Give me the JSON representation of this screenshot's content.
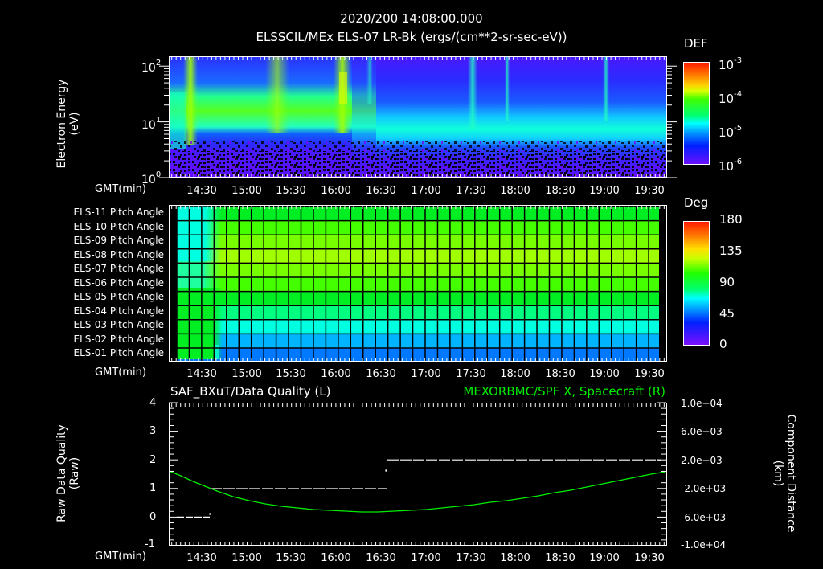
{
  "header": {
    "timestamp": "2020/200 14:08:00.000",
    "subtitle": "ELSSCIL/MEx ELS-07 LR-Bk  (ergs/(cm**2-sr-sec-eV))"
  },
  "x_axis": {
    "label": "GMT(min)",
    "ticks": [
      "14:30",
      "15:00",
      "15:30",
      "16:00",
      "16:30",
      "17:00",
      "17:30",
      "18:00",
      "18:30",
      "19:00",
      "19:30"
    ],
    "start": "14:08",
    "end": "19:45"
  },
  "panel1": {
    "ylabel_line1": "Electron Energy",
    "ylabel_line2": "(eV)",
    "yticks": [
      {
        "base": "10",
        "exp": "2"
      },
      {
        "base": "10",
        "exp": "1"
      },
      {
        "base": "10",
        "exp": "0"
      }
    ],
    "colorbar": {
      "title": "DEF",
      "labels": [
        {
          "base": "10",
          "exp": "-3"
        },
        {
          "base": "10",
          "exp": "-4"
        },
        {
          "base": "10",
          "exp": "-5"
        },
        {
          "base": "10",
          "exp": "-6"
        }
      ]
    }
  },
  "panel2": {
    "rows": [
      "ELS-11 Pitch Angle",
      "ELS-10 Pitch Angle",
      "ELS-09 Pitch Angle",
      "ELS-08 Pitch Angle",
      "ELS-07 Pitch Angle",
      "ELS-06 Pitch Angle",
      "ELS-05 Pitch Angle",
      "ELS-04 Pitch Angle",
      "ELS-03 Pitch Angle",
      "ELS-02 Pitch Angle",
      "ELS-01 Pitch Angle"
    ],
    "row_colors": [
      "#00ee22",
      "#44ff00",
      "#77ff00",
      "#a0ff00",
      "#77ff00",
      "#44ff00",
      "#00ee22",
      "#00ff80",
      "#00ffe0",
      "#00b4ff",
      "#0078ff"
    ],
    "colorbar": {
      "title": "Deg",
      "labels": [
        "180",
        "135",
        "90",
        "45",
        "0"
      ]
    }
  },
  "panel3": {
    "left_title": "SAF_BXuT/Data Quality (L)",
    "right_title": "MEXORBMC/SPF X, Spacecraft (R)",
    "right_title_color": "#00ee00",
    "ylabel_left_line1": "Raw Data Quality",
    "ylabel_left_line2": "(Raw)",
    "ylabel_right_line1": "Component Distance",
    "ylabel_right_line2": "(km)",
    "yticks_left": [
      "4",
      "3",
      "2",
      "1",
      "0",
      "-1"
    ],
    "yticks_right": [
      "1.0e+04",
      "6.0e+03",
      "2.0e+03",
      "-2.0e+03",
      "-6.0e+03",
      "-1.0e+04"
    ]
  },
  "chart_data": [
    {
      "type": "heatmap",
      "title": "ELSSCIL/MEx ELS-07 LR-Bk (ergs/(cm**2-sr-sec-eV))",
      "xlabel": "GMT(min)",
      "ylabel": "Electron Energy (eV)",
      "yscale": "log",
      "ylim": [
        1,
        150
      ],
      "xlim": [
        "14:08",
        "19:45"
      ],
      "colorbar": {
        "label": "DEF",
        "scale": "log",
        "range": [
          1e-06,
          0.001
        ]
      },
      "features": [
        {
          "time_range": [
            "14:08",
            "16:05"
          ],
          "energy_band_eV": [
            8,
            60
          ],
          "level": "~1e-4 (green)"
        },
        {
          "time_range": [
            "16:05",
            "19:45"
          ],
          "energy_band_eV": [
            5,
            20
          ],
          "level": "~1e-5 (cyan)"
        },
        {
          "time": "14:18",
          "note": "vertical enhancement spike"
        },
        {
          "time": "15:40",
          "note": "enhancement"
        },
        {
          "time": "16:02",
          "note": "strong enhancement ~2e-4 (yellow-green)"
        },
        {
          "time": "17:30",
          "note": "vertical spike"
        },
        {
          "time": "17:55",
          "note": "vertical spike"
        },
        {
          "time": "19:00",
          "note": "vertical spike"
        }
      ]
    },
    {
      "type": "heatmap",
      "title": "ELS Pitch Angles",
      "xlabel": "GMT(min)",
      "categories": [
        "ELS-11",
        "ELS-10",
        "ELS-09",
        "ELS-08",
        "ELS-07",
        "ELS-06",
        "ELS-05",
        "ELS-04",
        "ELS-03",
        "ELS-02",
        "ELS-01"
      ],
      "colorbar": {
        "label": "Deg",
        "range": [
          0,
          180
        ]
      },
      "values_deg_after_1445": [
        95,
        110,
        120,
        130,
        120,
        110,
        95,
        78,
        60,
        40,
        28
      ],
      "values_deg_before_1440": [
        60,
        60,
        60,
        62,
        62,
        75,
        85,
        88,
        90,
        90,
        90
      ]
    },
    {
      "type": "line",
      "title": "SAF_BXuT/Data Quality (L) ; MEXORBMC/SPF X, Spacecraft (R)",
      "xlabel": "GMT(min)",
      "x": [
        "14:08",
        "14:30",
        "14:38",
        "15:00",
        "15:30",
        "16:00",
        "16:20",
        "16:30",
        "17:00",
        "17:30",
        "18:00",
        "18:30",
        "19:00",
        "19:30",
        "19:45"
      ],
      "series": [
        {
          "name": "Raw Data Quality (L)",
          "axis": "left",
          "ylim": [
            -1,
            4
          ],
          "values": [
            0,
            0,
            1,
            1,
            1,
            1,
            1,
            2,
            2,
            2,
            2,
            2,
            2,
            2,
            null
          ]
        },
        {
          "name": "SPF X, Spacecraft (km) (R)",
          "axis": "right",
          "color": "#00ee00",
          "ylim": [
            -10000,
            10000
          ],
          "values": [
            2500,
            200,
            -1000,
            -3000,
            -4400,
            -5100,
            -5300,
            -5200,
            -4800,
            -4200,
            -3400,
            -2300,
            -1000,
            800,
            2300
          ]
        }
      ]
    }
  ]
}
